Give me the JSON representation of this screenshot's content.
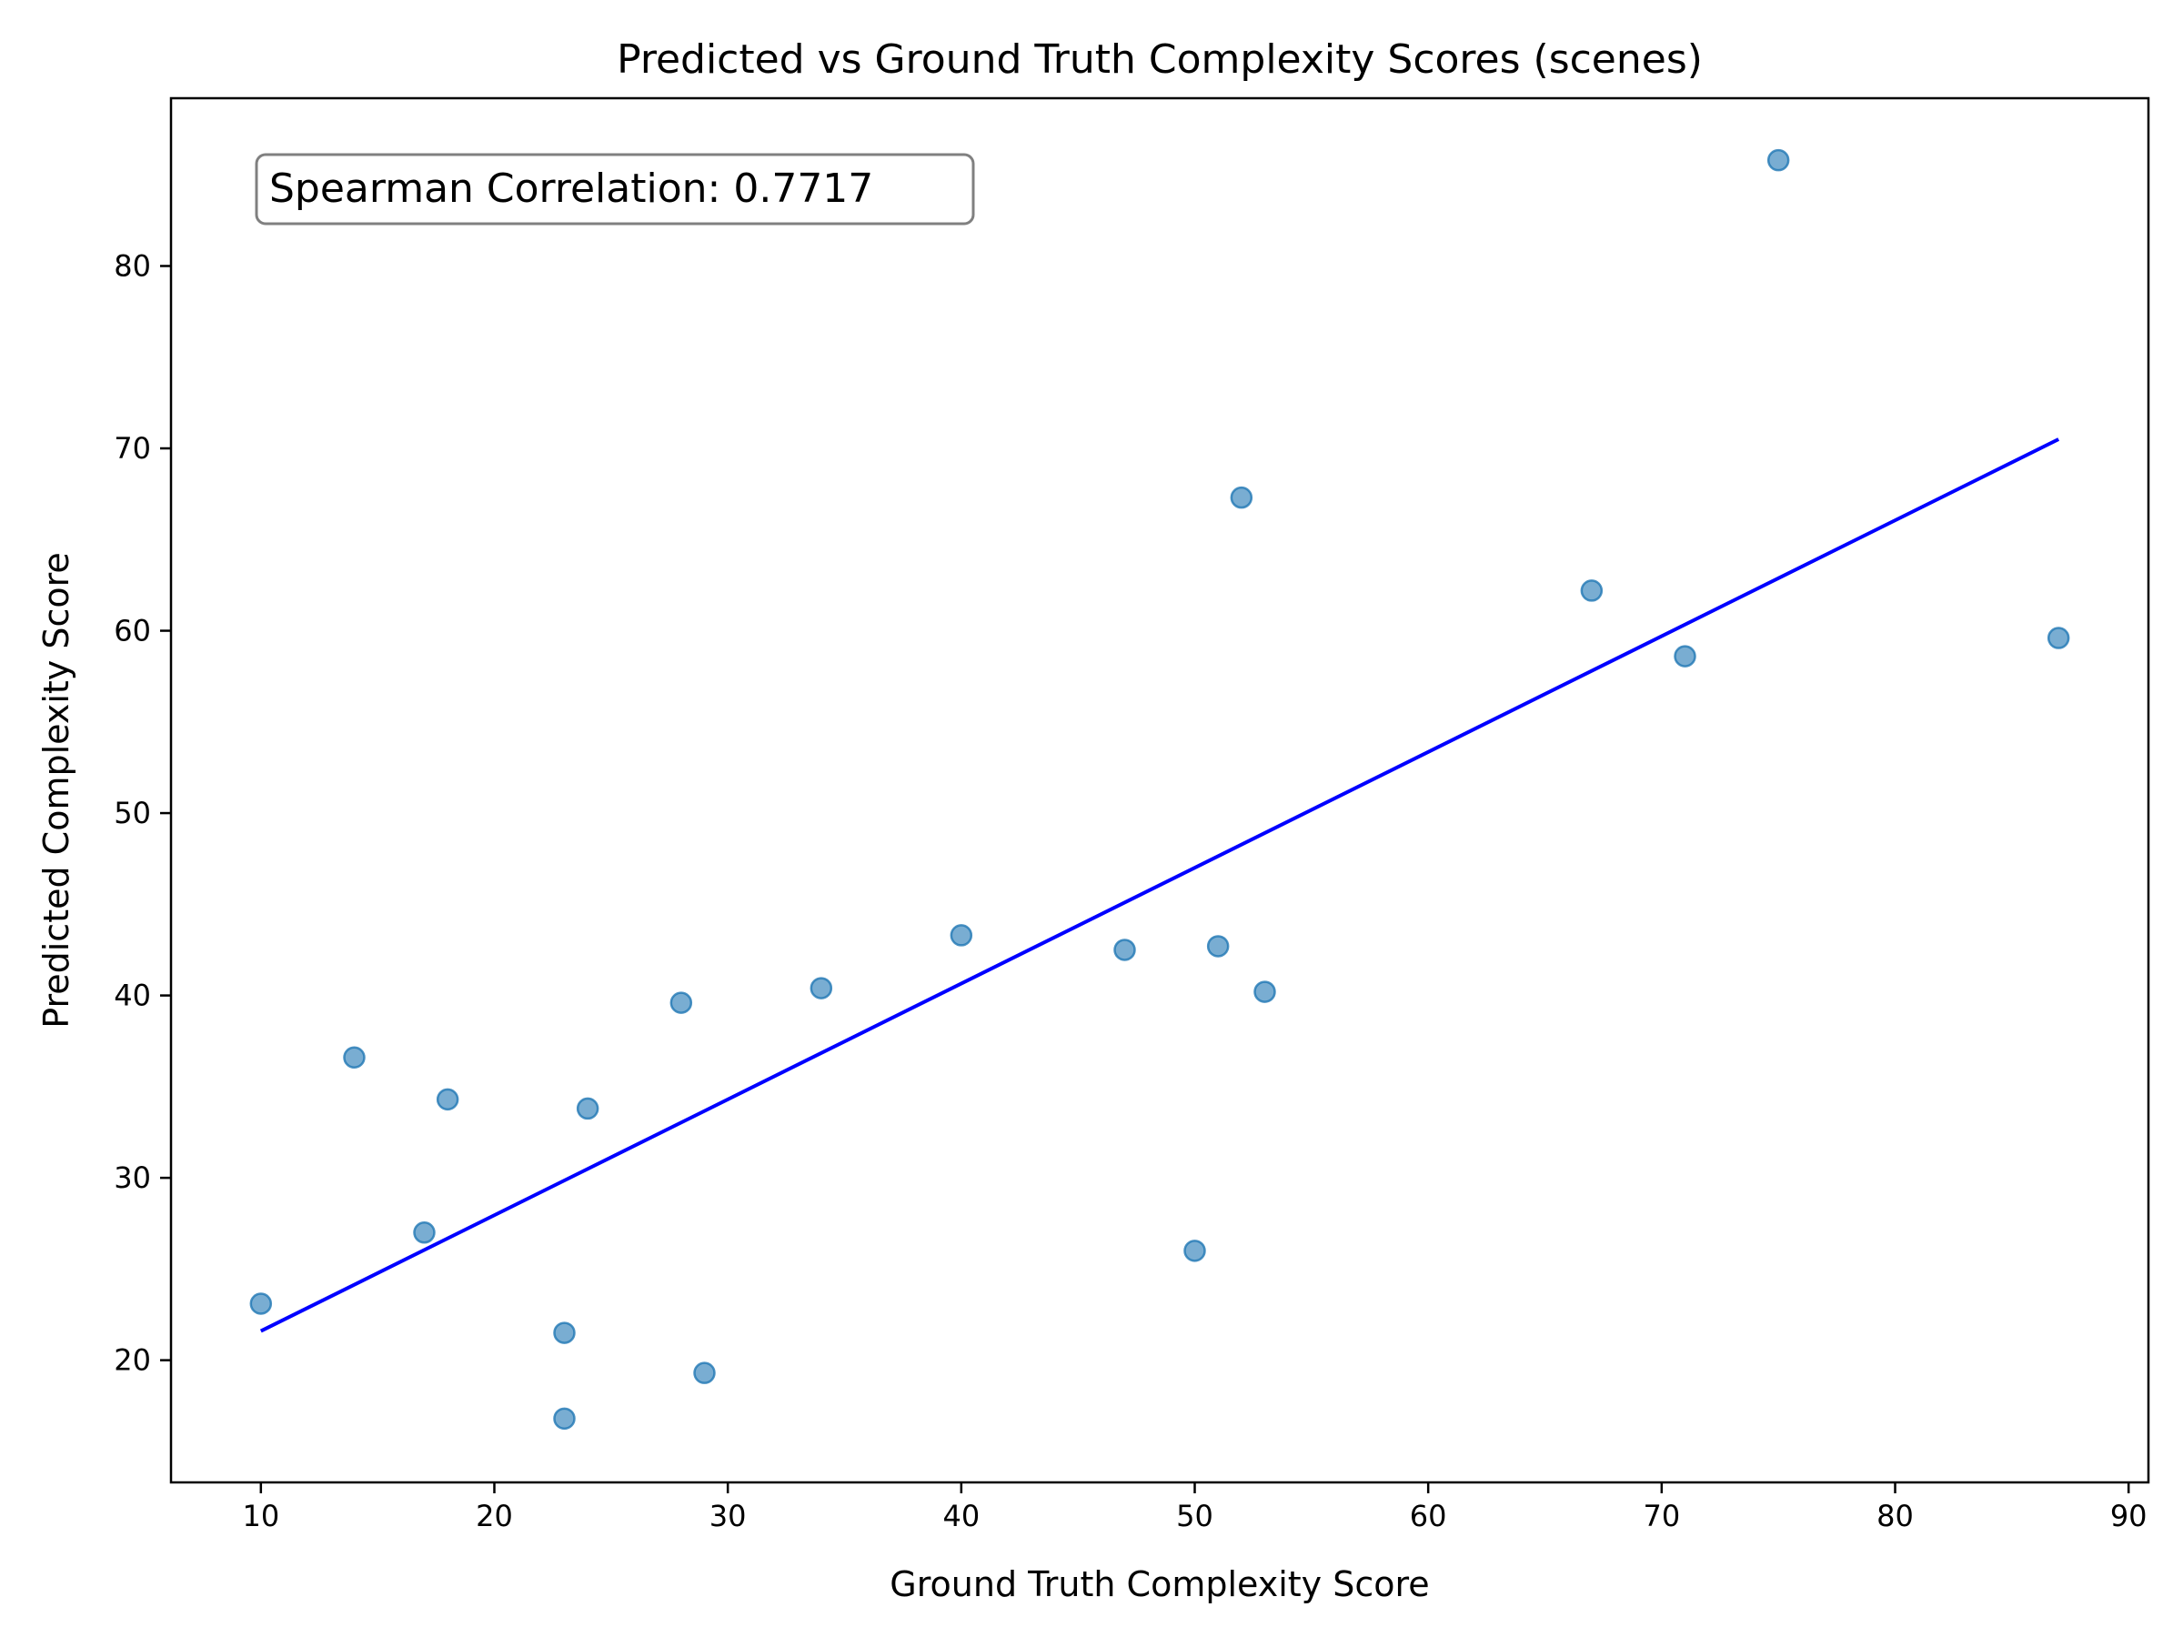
{
  "chart_data": {
    "type": "scatter",
    "title": "Predicted vs Ground Truth Complexity Scores (scenes)",
    "xlabel": "Ground Truth Complexity Score",
    "ylabel": "Predicted Complexity Score",
    "xlim": [
      6.15,
      90.85
    ],
    "ylim": [
      13.3,
      89.2
    ],
    "xticks": [
      10,
      20,
      30,
      40,
      50,
      60,
      70,
      80,
      90
    ],
    "yticks": [
      20,
      30,
      40,
      50,
      60,
      70,
      80
    ],
    "grid": false,
    "annotation": "Spearman Correlation: 0.7717",
    "colors": {
      "points": "#1f77b4",
      "line": "#0000ff",
      "axes": "#000000",
      "annotation_border": "#808080"
    },
    "points": [
      {
        "x": 10,
        "y": 23.1
      },
      {
        "x": 14,
        "y": 36.6
      },
      {
        "x": 17,
        "y": 27.0
      },
      {
        "x": 18,
        "y": 34.3
      },
      {
        "x": 23,
        "y": 21.5
      },
      {
        "x": 23,
        "y": 16.8
      },
      {
        "x": 24,
        "y": 33.8
      },
      {
        "x": 28,
        "y": 39.6
      },
      {
        "x": 29,
        "y": 19.3
      },
      {
        "x": 34,
        "y": 40.4
      },
      {
        "x": 40,
        "y": 43.3
      },
      {
        "x": 47,
        "y": 42.5
      },
      {
        "x": 50,
        "y": 26.0
      },
      {
        "x": 51,
        "y": 42.7
      },
      {
        "x": 52,
        "y": 67.3
      },
      {
        "x": 53,
        "y": 40.2
      },
      {
        "x": 67,
        "y": 62.2
      },
      {
        "x": 71,
        "y": 58.6
      },
      {
        "x": 75,
        "y": 85.8
      },
      {
        "x": 87,
        "y": 59.6
      }
    ],
    "fit_line": {
      "x": [
        10,
        87
      ],
      "y": [
        21.6,
        70.5
      ]
    }
  }
}
